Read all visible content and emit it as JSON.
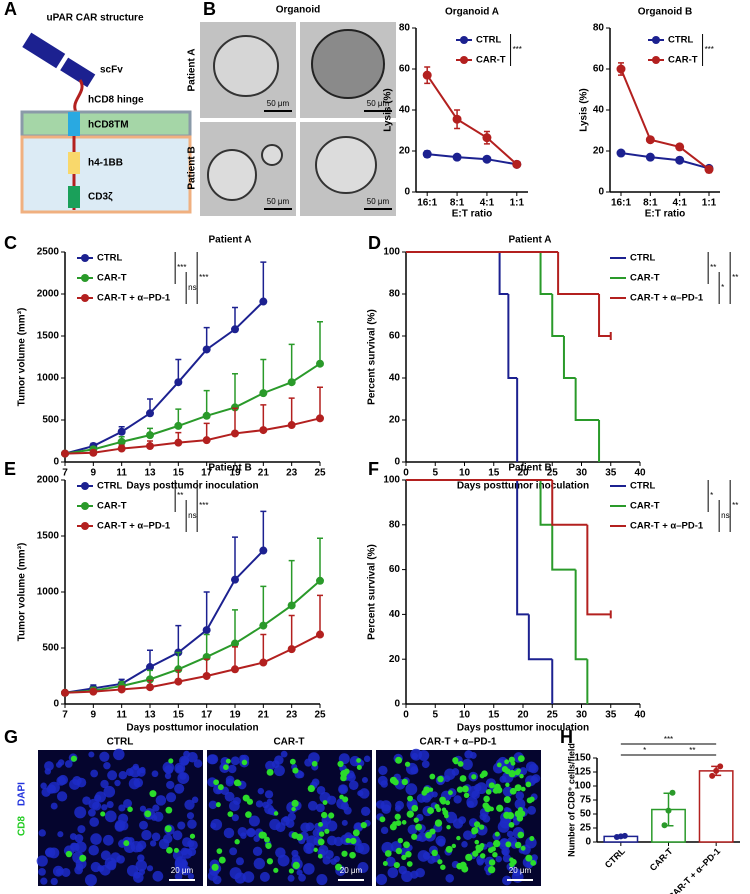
{
  "panel_labels": [
    "A",
    "B",
    "C",
    "D",
    "E",
    "F",
    "G",
    "H"
  ],
  "car_structure": {
    "title": "uPAR CAR structure",
    "domains": [
      "scFv",
      "hCD8 hinge",
      "hCD8TM",
      "h4-1BB",
      "CD3ζ"
    ]
  },
  "organoid_images": {
    "title": "Organoid",
    "rows": [
      "Patient A",
      "Patient B"
    ],
    "scale_bars": [
      "50 μm",
      "50 μm",
      "50 μm",
      "50 μm"
    ]
  },
  "chart_data": [
    {
      "type": "line",
      "title": "Organoid A",
      "x_label": "E:T ratio",
      "y_label": "Lysis (%)",
      "categories": [
        "16:1",
        "8:1",
        "4:1",
        "1:1"
      ],
      "ylim": [
        0,
        80
      ],
      "yticks": [
        0,
        20,
        40,
        60,
        80
      ],
      "legend": "upper right",
      "error_bars": "both",
      "significance": [
        "***"
      ],
      "series": [
        {
          "name": "CTRL",
          "color": "#1c2190",
          "values": [
            18.5,
            17,
            16,
            13.5
          ],
          "errors": [
            1.5,
            1,
            1,
            1
          ]
        },
        {
          "name": "CAR-T",
          "color": "#b3201f",
          "values": [
            57,
            35.5,
            26.5,
            13.5
          ],
          "errors": [
            4,
            4.5,
            3,
            1
          ]
        }
      ]
    },
    {
      "type": "line",
      "title": "Organoid B",
      "x_label": "E:T ratio",
      "y_label": "Lysis (%)",
      "categories": [
        "16:1",
        "8:1",
        "4:1",
        "1:1"
      ],
      "ylim": [
        0,
        80
      ],
      "yticks": [
        0,
        20,
        40,
        60,
        80
      ],
      "legend": "upper right",
      "error_bars": "both",
      "significance": [
        "***"
      ],
      "series": [
        {
          "name": "CTRL",
          "color": "#1c2190",
          "values": [
            19,
            17,
            15.5,
            11.5
          ],
          "errors": [
            1,
            1,
            1,
            1
          ]
        },
        {
          "name": "CAR-T",
          "color": "#b3201f",
          "values": [
            60,
            25.5,
            22,
            11
          ],
          "errors": [
            3,
            1,
            1,
            1.5
          ]
        }
      ]
    },
    {
      "type": "line",
      "title": "Patient A",
      "x_label": "Days posttumor inoculation",
      "y_label": "Tumor volume (mm³)",
      "x": [
        7,
        9,
        11,
        13,
        15,
        17,
        19,
        21,
        23,
        25
      ],
      "xlim": [
        7,
        25
      ],
      "xticks": [
        7,
        9,
        11,
        13,
        15,
        17,
        19,
        21,
        23,
        25
      ],
      "ylim": [
        0,
        2500
      ],
      "yticks": [
        0,
        500,
        1000,
        1500,
        2000,
        2500
      ],
      "legend": "upper left",
      "error_bars": "upper",
      "significance": [
        "***",
        "ns",
        "***"
      ],
      "series": [
        {
          "name": "CTRL",
          "color": "#1c2190",
          "values": [
            100,
            190,
            360,
            580,
            950,
            1340,
            1580,
            1910,
            null,
            null
          ],
          "errors": [
            0,
            30,
            60,
            170,
            270,
            260,
            260,
            470,
            null,
            null
          ]
        },
        {
          "name": "CAR-T",
          "color": "#2a9a2a",
          "values": [
            100,
            150,
            240,
            320,
            430,
            550,
            650,
            820,
            950,
            1170
          ],
          "errors": [
            0,
            30,
            60,
            80,
            200,
            300,
            400,
            400,
            450,
            500
          ]
        },
        {
          "name": "CAR-T + α–PD-1",
          "color": "#b3201f",
          "values": [
            100,
            110,
            160,
            190,
            230,
            260,
            340,
            380,
            440,
            520
          ],
          "errors": [
            0,
            20,
            40,
            60,
            120,
            200,
            300,
            300,
            320,
            370
          ]
        }
      ]
    },
    {
      "type": "step",
      "title": "Patient A",
      "x_label": "Days posttumor inoculation",
      "y_label": "Percent survival (%)",
      "xlim": [
        0,
        40
      ],
      "xticks": [
        0,
        5,
        10,
        15,
        20,
        25,
        30,
        35,
        40
      ],
      "ylim": [
        0,
        100
      ],
      "yticks": [
        0,
        20,
        40,
        60,
        80,
        100
      ],
      "legend": "upper right",
      "significance": [
        "**",
        "*",
        "**"
      ],
      "series": [
        {
          "name": "CTRL",
          "color": "#1c2190",
          "x": [
            0,
            16,
            17.5,
            19
          ],
          "values": [
            100,
            80,
            40,
            0
          ]
        },
        {
          "name": "CAR-T",
          "color": "#2a9a2a",
          "x": [
            0,
            23,
            25,
            27,
            29,
            33
          ],
          "values": [
            100,
            80,
            60,
            40,
            20,
            0
          ]
        },
        {
          "name": "CAR-T + α–PD-1",
          "color": "#b3201f",
          "x": [
            0,
            26,
            33,
            35
          ],
          "values": [
            100,
            80,
            60,
            60
          ]
        }
      ]
    },
    {
      "type": "line",
      "title": "Patient B",
      "x_label": "Days posttumor inoculation",
      "y_label": "Tumor volume (mm³)",
      "x": [
        7,
        9,
        11,
        13,
        15,
        17,
        19,
        21,
        23,
        25
      ],
      "xlim": [
        7,
        25
      ],
      "xticks": [
        7,
        9,
        11,
        13,
        15,
        17,
        19,
        21,
        23,
        25
      ],
      "ylim": [
        0,
        2000
      ],
      "yticks": [
        0,
        500,
        1000,
        1500,
        2000
      ],
      "legend": "upper left",
      "error_bars": "upper",
      "significance": [
        "**",
        "ns",
        "***"
      ],
      "series": [
        {
          "name": "CTRL",
          "color": "#1c2190",
          "values": [
            100,
            140,
            180,
            330,
            460,
            660,
            1110,
            1370,
            null,
            null
          ],
          "errors": [
            0,
            30,
            40,
            150,
            240,
            340,
            380,
            350,
            null,
            null
          ]
        },
        {
          "name": "CAR-T",
          "color": "#2a9a2a",
          "values": [
            100,
            120,
            160,
            220,
            310,
            420,
            540,
            700,
            880,
            1100
          ],
          "errors": [
            0,
            30,
            40,
            80,
            150,
            200,
            300,
            350,
            400,
            380
          ]
        },
        {
          "name": "CAR-T + α–PD-1",
          "color": "#b3201f",
          "values": [
            100,
            110,
            130,
            150,
            200,
            250,
            310,
            370,
            490,
            620
          ],
          "errors": [
            0,
            20,
            30,
            60,
            100,
            150,
            200,
            250,
            300,
            350
          ]
        }
      ]
    },
    {
      "type": "step",
      "title": "Patient B",
      "x_label": "Days posttumor inoculation",
      "y_label": "Percent survival (%)",
      "xlim": [
        0,
        40
      ],
      "xticks": [
        0,
        5,
        10,
        15,
        20,
        25,
        30,
        35,
        40
      ],
      "ylim": [
        0,
        100
      ],
      "yticks": [
        0,
        20,
        40,
        60,
        80,
        100
      ],
      "legend": "upper right",
      "significance": [
        "*",
        "ns",
        "**"
      ],
      "series": [
        {
          "name": "CTRL",
          "color": "#1c2190",
          "x": [
            0,
            19,
            21,
            25
          ],
          "values": [
            100,
            40,
            20,
            0
          ]
        },
        {
          "name": "CAR-T",
          "color": "#2a9a2a",
          "x": [
            0,
            23,
            25,
            29,
            31
          ],
          "values": [
            100,
            80,
            60,
            20,
            0
          ]
        },
        {
          "name": "CAR-T + α–PD-1",
          "color": "#b3201f",
          "x": [
            0,
            25,
            31,
            35
          ],
          "values": [
            100,
            80,
            40,
            40
          ]
        }
      ]
    },
    {
      "type": "bar",
      "y_label": "Number of CD8⁺ cells/field",
      "categories": [
        "CTRL",
        "CAR-T",
        "CAR-T + α–PD-1"
      ],
      "values": [
        10,
        58,
        127
      ],
      "errors": [
        2,
        29,
        8
      ],
      "points": [
        [
          9,
          10,
          11
        ],
        [
          30,
          56,
          88
        ],
        [
          118,
          127,
          135
        ]
      ],
      "colors": [
        "#1c2190",
        "#2a9a2a",
        "#b3201f"
      ],
      "ylim": [
        0,
        150
      ],
      "yticks": [
        0,
        25,
        50,
        75,
        100,
        125,
        150
      ],
      "significance": [
        "***",
        "*",
        "**"
      ]
    }
  ],
  "cd8_images": {
    "channels": [
      "CD8",
      "DAPI"
    ],
    "columns": [
      "CTRL",
      "CAR-T",
      "CAR-T + α–PD-1"
    ],
    "scale_bars": [
      "20 μm",
      "20 μm",
      "20 μm"
    ]
  }
}
